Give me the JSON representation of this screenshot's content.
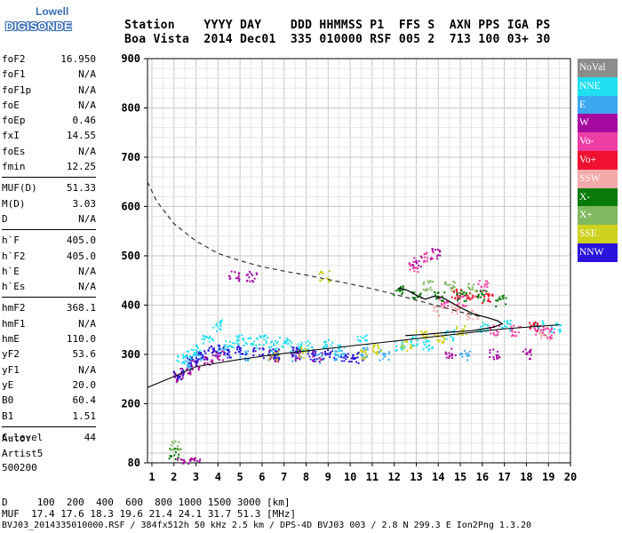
{
  "logo": {
    "top": "Lowell",
    "main": "DIGISONDE"
  },
  "header": {
    "line1": "Station    YYYY DAY    DDD HHMMSS P1  FFS S  AXN PPS IGA PS",
    "line2": "Boa Vista  2014 Dec01  335 010000 RSF 005 2  713 100 03+ 30"
  },
  "params": [
    [
      {
        "k": "foF2",
        "v": "16.950"
      },
      {
        "k": "foF1",
        "v": "N/A"
      },
      {
        "k": "foF1p",
        "v": "N/A"
      },
      {
        "k": "foE",
        "v": "N/A"
      },
      {
        "k": "foEp",
        "v": "0.46"
      },
      {
        "k": "fxI",
        "v": "14.55"
      },
      {
        "k": "foEs",
        "v": "N/A"
      },
      {
        "k": "fmin",
        "v": "12.25"
      }
    ],
    [
      {
        "k": "MUF(D)",
        "v": "51.33"
      },
      {
        "k": "M(D)",
        "v": "3.03"
      },
      {
        "k": "D",
        "v": "N/A"
      }
    ],
    [
      {
        "k": "h`F",
        "v": "405.0"
      },
      {
        "k": "h`F2",
        "v": "405.0"
      },
      {
        "k": "h`E",
        "v": "N/A"
      },
      {
        "k": "h`Es",
        "v": "N/A"
      }
    ],
    [
      {
        "k": "hmF2",
        "v": "368.1"
      },
      {
        "k": "hmF1",
        "v": "N/A"
      },
      {
        "k": "hmE",
        "v": "110.0"
      },
      {
        "k": "yF2",
        "v": "53.6"
      },
      {
        "k": "yF1",
        "v": "N/A"
      },
      {
        "k": "yE",
        "v": "20.0"
      },
      {
        "k": "B0",
        "v": "60.4"
      },
      {
        "k": "B1",
        "v": "1.51"
      }
    ],
    [
      {
        "k": "C-level",
        "v": "44"
      }
    ]
  ],
  "auto": {
    "line1": "Auto:",
    "line2": "Artist5",
    "line3": "500200"
  },
  "legend": [
    {
      "label": "NoVal",
      "color": "#8c8c8c"
    },
    {
      "label": "NNE",
      "color": "#1ee0f0"
    },
    {
      "label": "E",
      "color": "#3ca8ef"
    },
    {
      "label": "W",
      "color": "#a50aa0"
    },
    {
      "label": "Vo-",
      "color": "#ee3ea6"
    },
    {
      "label": "Vo+",
      "color": "#f01030"
    },
    {
      "label": "SSW",
      "color": "#f4a8a8"
    },
    {
      "label": "X-",
      "color": "#087a08"
    },
    {
      "label": "X+",
      "color": "#80b860"
    },
    {
      "label": "SSE",
      "color": "#cfd21e"
    },
    {
      "label": "NNW",
      "color": "#2a14dc"
    }
  ],
  "chart_data": {
    "type": "scatter",
    "title": "",
    "xlabel": "",
    "ylabel": "",
    "xlim": [
      0.8,
      20
    ],
    "ylim": [
      80,
      900
    ],
    "x_ticks": [
      "1",
      "2",
      "3",
      "4",
      "5",
      "6",
      "7",
      "8",
      "9",
      "10",
      "11",
      "12",
      "13",
      "14",
      "15",
      "16",
      "17",
      "18",
      "19",
      "20"
    ],
    "y_ticks": [
      "80",
      "200",
      "300",
      "400",
      "500",
      "600",
      "700",
      "800",
      "900"
    ],
    "grid": true,
    "legend_position": "right",
    "series": [
      {
        "name": "NNE",
        "color": "#1ee0f0",
        "points": [
          [
            2.3,
            290
          ],
          [
            2.6,
            300
          ],
          [
            3.0,
            310
          ],
          [
            3.5,
            330
          ],
          [
            4.0,
            360
          ],
          [
            4.5,
            320
          ],
          [
            5.0,
            330
          ],
          [
            5.5,
            325
          ],
          [
            6.0,
            330
          ],
          [
            6.5,
            320
          ],
          [
            7.0,
            325
          ],
          [
            7.5,
            315
          ],
          [
            8.0,
            318
          ],
          [
            9.0,
            322
          ],
          [
            9.5,
            310
          ],
          [
            10.5,
            330
          ],
          [
            12.2,
            320
          ],
          [
            12.8,
            330
          ],
          [
            13.5,
            320
          ],
          [
            14.5,
            340
          ],
          [
            16.0,
            355
          ],
          [
            17.0,
            360
          ],
          [
            18.5,
            360
          ],
          [
            19.3,
            355
          ]
        ]
      },
      {
        "name": "E",
        "color": "#3ca8ef",
        "points": [
          [
            2.5,
            280
          ],
          [
            3.2,
            300
          ],
          [
            4.2,
            310
          ],
          [
            5.2,
            300
          ],
          [
            6.5,
            300
          ],
          [
            7.5,
            298
          ],
          [
            8.5,
            295
          ],
          [
            9.5,
            300
          ],
          [
            10.5,
            305
          ],
          [
            11.5,
            300
          ],
          [
            15.2,
            300
          ]
        ]
      },
      {
        "name": "W",
        "color": "#a50aa0",
        "points": [
          [
            2.1,
            255
          ],
          [
            2.5,
            265
          ],
          [
            3.0,
            280
          ],
          [
            3.5,
            290
          ],
          [
            4.0,
            300
          ],
          [
            4.7,
            460
          ],
          [
            5.5,
            460
          ],
          [
            6.5,
            298
          ],
          [
            7.5,
            300
          ],
          [
            8.5,
            298
          ],
          [
            13.0,
            490
          ],
          [
            13.8,
            505
          ],
          [
            14.5,
            303
          ],
          [
            16.5,
            303
          ],
          [
            18.0,
            303
          ],
          [
            2.2,
            82
          ],
          [
            2.6,
            82
          ],
          [
            3.0,
            82
          ]
        ]
      },
      {
        "name": "Vo-",
        "color": "#ee3ea6",
        "points": [
          [
            12.8,
            480
          ],
          [
            13.5,
            500
          ],
          [
            14.2,
            410
          ],
          [
            15.0,
            410
          ],
          [
            16.0,
            440
          ],
          [
            16.5,
            350
          ],
          [
            17.5,
            350
          ],
          [
            18.5,
            350
          ],
          [
            19.0,
            345
          ]
        ]
      },
      {
        "name": "Vo+",
        "color": "#f01030",
        "points": [
          [
            14.8,
            425
          ],
          [
            15.5,
            420
          ],
          [
            16.2,
            415
          ],
          [
            18.3,
            360
          ]
        ]
      },
      {
        "name": "SSW",
        "color": "#f4a8a8",
        "points": [
          [
            14.0,
            390
          ],
          [
            14.8,
            395
          ],
          [
            15.5,
            380
          ],
          [
            18.8,
            340
          ]
        ]
      },
      {
        "name": "X-",
        "color": "#087a08",
        "points": [
          [
            12.2,
            430
          ],
          [
            13.0,
            425
          ],
          [
            14.0,
            420
          ],
          [
            15.0,
            420
          ],
          [
            16.0,
            420
          ],
          [
            16.8,
            410
          ],
          [
            2.0,
            100
          ]
        ]
      },
      {
        "name": "X+",
        "color": "#80b860",
        "points": [
          [
            13.5,
            440
          ],
          [
            14.5,
            440
          ],
          [
            15.5,
            435
          ],
          [
            2.05,
            118
          ]
        ]
      },
      {
        "name": "SSE",
        "color": "#cfd21e",
        "points": [
          [
            6.5,
            300
          ],
          [
            7.8,
            305
          ],
          [
            8.8,
            460
          ],
          [
            10.5,
            300
          ],
          [
            11.2,
            310
          ],
          [
            12.5,
            320
          ],
          [
            13.2,
            340
          ],
          [
            14.0,
            335
          ],
          [
            15.0,
            350
          ]
        ]
      },
      {
        "name": "NNW",
        "color": "#2a14dc",
        "points": [
          [
            2.2,
            260
          ],
          [
            2.8,
            285
          ],
          [
            3.3,
            300
          ],
          [
            3.8,
            310
          ],
          [
            4.3,
            305
          ],
          [
            5.0,
            310
          ],
          [
            5.8,
            305
          ],
          [
            6.5,
            302
          ],
          [
            7.5,
            305
          ],
          [
            8.2,
            300
          ],
          [
            9.0,
            302
          ],
          [
            9.8,
            298
          ],
          [
            10.3,
            295
          ]
        ]
      }
    ],
    "profile_solid": [
      [
        12.2,
        435
      ],
      [
        12.6,
        430
      ],
      [
        13.0,
        420
      ],
      [
        13.4,
        412
      ],
      [
        13.8,
        418
      ],
      [
        14.2,
        415
      ],
      [
        14.6,
        405
      ],
      [
        15.0,
        395
      ],
      [
        15.6,
        382
      ],
      [
        16.2,
        375
      ],
      [
        16.7,
        368
      ],
      [
        16.9,
        362
      ],
      [
        16.5,
        355
      ],
      [
        15.5,
        348
      ],
      [
        14.5,
        345
      ],
      [
        13.5,
        341
      ],
      [
        12.5,
        338
      ]
    ],
    "profile_dashed": [
      [
        0.8,
        650
      ],
      [
        1.2,
        612
      ],
      [
        2,
        565
      ],
      [
        3,
        530
      ],
      [
        4,
        505
      ],
      [
        5,
        490
      ],
      [
        6,
        478
      ],
      [
        7,
        469
      ],
      [
        8,
        461
      ],
      [
        9,
        452
      ],
      [
        10,
        443
      ],
      [
        11,
        433
      ],
      [
        12,
        422
      ],
      [
        13,
        410
      ],
      [
        14,
        398
      ],
      [
        15,
        386
      ],
      [
        16,
        376
      ]
    ],
    "profile_lower": [
      [
        0.8,
        233
      ],
      [
        2,
        255
      ],
      [
        3,
        275
      ],
      [
        5,
        290
      ],
      [
        7,
        302
      ],
      [
        9,
        312
      ],
      [
        11,
        322
      ],
      [
        13,
        332
      ],
      [
        15,
        342
      ],
      [
        17,
        352
      ],
      [
        19.5,
        360
      ]
    ]
  },
  "footer": {
    "line1": "D     100  200  400  600  800 1000 1500 3000 [km]",
    "line2": "MUF  17.4 17.6 18.3 19.6 21.4 24.1 31.7 51.3 [MHz]",
    "line3": "BVJ03_2014335010000.RSF / 384fx512h 50 kHz 2.5 km / DPS-4D BVJ03 003 / 2.8 N 299.3 E Ion2Png 1.3.20"
  }
}
